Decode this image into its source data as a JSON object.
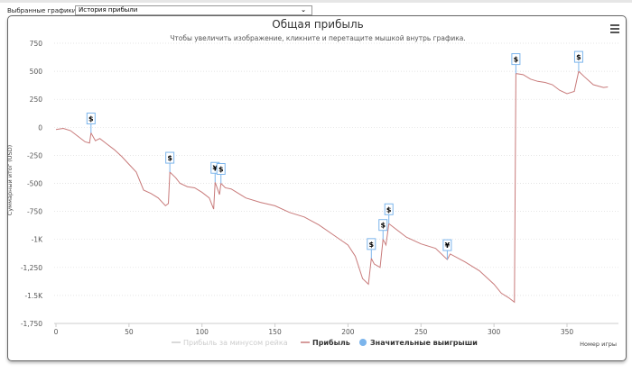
{
  "toolbar": {
    "selected_charts_label": "Выбранные графики:",
    "selected_chart": "История прибыли"
  },
  "chart_data": {
    "type": "line",
    "title": "Общая прибыль",
    "subtitle": "Чтобы увеличить изображение, кликните и перетащите мышкой внутрь графика.",
    "xlabel": "Номер игры",
    "ylabel": "Суммарный итог (USD)",
    "xlim": [
      0,
      380
    ],
    "ylim": [
      -1750,
      750
    ],
    "grid": true,
    "x_ticks": [
      "0",
      "50",
      "100",
      "150",
      "200",
      "250",
      "300",
      "350"
    ],
    "x_tick_values": [
      0,
      50,
      100,
      150,
      200,
      250,
      300,
      350
    ],
    "y_ticks": [
      "750",
      "500",
      "250",
      "0",
      "-250",
      "-500",
      "-750",
      "-1K",
      "-1,250",
      "-1.5K",
      "-1,750"
    ],
    "y_tick_values": [
      750,
      500,
      250,
      0,
      -250,
      -500,
      -750,
      -1000,
      -1250,
      -1500,
      -1750
    ],
    "legend": [
      "Прибыль за минусом рейка",
      "Прибыль",
      "Значительные выигрыши"
    ],
    "legend_placement": "bottom",
    "series": [
      {
        "name": "Прибыль",
        "color": "#c87a7a",
        "points": [
          [
            0,
            -20
          ],
          [
            5,
            -10
          ],
          [
            10,
            -30
          ],
          [
            15,
            -80
          ],
          [
            20,
            -130
          ],
          [
            23,
            -140
          ],
          [
            24,
            -50
          ],
          [
            27,
            -120
          ],
          [
            30,
            -100
          ],
          [
            35,
            -150
          ],
          [
            40,
            -200
          ],
          [
            45,
            -260
          ],
          [
            50,
            -330
          ],
          [
            55,
            -400
          ],
          [
            60,
            -560
          ],
          [
            65,
            -590
          ],
          [
            70,
            -630
          ],
          [
            75,
            -700
          ],
          [
            77,
            -680
          ],
          [
            78,
            -400
          ],
          [
            82,
            -450
          ],
          [
            85,
            -500
          ],
          [
            90,
            -530
          ],
          [
            95,
            -540
          ],
          [
            100,
            -580
          ],
          [
            105,
            -630
          ],
          [
            108,
            -730
          ],
          [
            109,
            -490
          ],
          [
            112,
            -600
          ],
          [
            113,
            -500
          ],
          [
            116,
            -540
          ],
          [
            120,
            -550
          ],
          [
            125,
            -590
          ],
          [
            130,
            -630
          ],
          [
            140,
            -670
          ],
          [
            150,
            -700
          ],
          [
            160,
            -760
          ],
          [
            170,
            -800
          ],
          [
            180,
            -870
          ],
          [
            190,
            -960
          ],
          [
            200,
            -1050
          ],
          [
            205,
            -1150
          ],
          [
            210,
            -1350
          ],
          [
            214,
            -1400
          ],
          [
            216,
            -1170
          ],
          [
            218,
            -1220
          ],
          [
            222,
            -1250
          ],
          [
            224,
            -1000
          ],
          [
            226,
            -1050
          ],
          [
            228,
            -860
          ],
          [
            232,
            -900
          ],
          [
            240,
            -980
          ],
          [
            250,
            -1040
          ],
          [
            260,
            -1080
          ],
          [
            268,
            -1180
          ],
          [
            270,
            -1130
          ],
          [
            280,
            -1200
          ],
          [
            290,
            -1280
          ],
          [
            300,
            -1400
          ],
          [
            305,
            -1480
          ],
          [
            310,
            -1520
          ],
          [
            314,
            -1560
          ],
          [
            315,
            480
          ],
          [
            320,
            470
          ],
          [
            325,
            430
          ],
          [
            330,
            410
          ],
          [
            335,
            400
          ],
          [
            340,
            380
          ],
          [
            345,
            330
          ],
          [
            350,
            300
          ],
          [
            355,
            320
          ],
          [
            358,
            500
          ],
          [
            362,
            450
          ],
          [
            368,
            380
          ],
          [
            375,
            355
          ],
          [
            378,
            360
          ]
        ]
      }
    ],
    "flags": [
      {
        "x": 24,
        "y": -50,
        "label": "$"
      },
      {
        "x": 78,
        "y": -400,
        "label": "$"
      },
      {
        "x": 109,
        "y": -490,
        "label": "¥"
      },
      {
        "x": 113,
        "y": -500,
        "label": "$"
      },
      {
        "x": 216,
        "y": -1170,
        "label": "$"
      },
      {
        "x": 224,
        "y": -1000,
        "label": "$"
      },
      {
        "x": 228,
        "y": -860,
        "label": "$"
      },
      {
        "x": 268,
        "y": -1180,
        "label": "¥"
      },
      {
        "x": 315,
        "y": 480,
        "label": "$"
      },
      {
        "x": 358,
        "y": 500,
        "label": "$"
      }
    ],
    "colors": {
      "profit": "#c87a7a",
      "rake": "#cccccc",
      "big_wins": "#7cb5ec"
    }
  }
}
